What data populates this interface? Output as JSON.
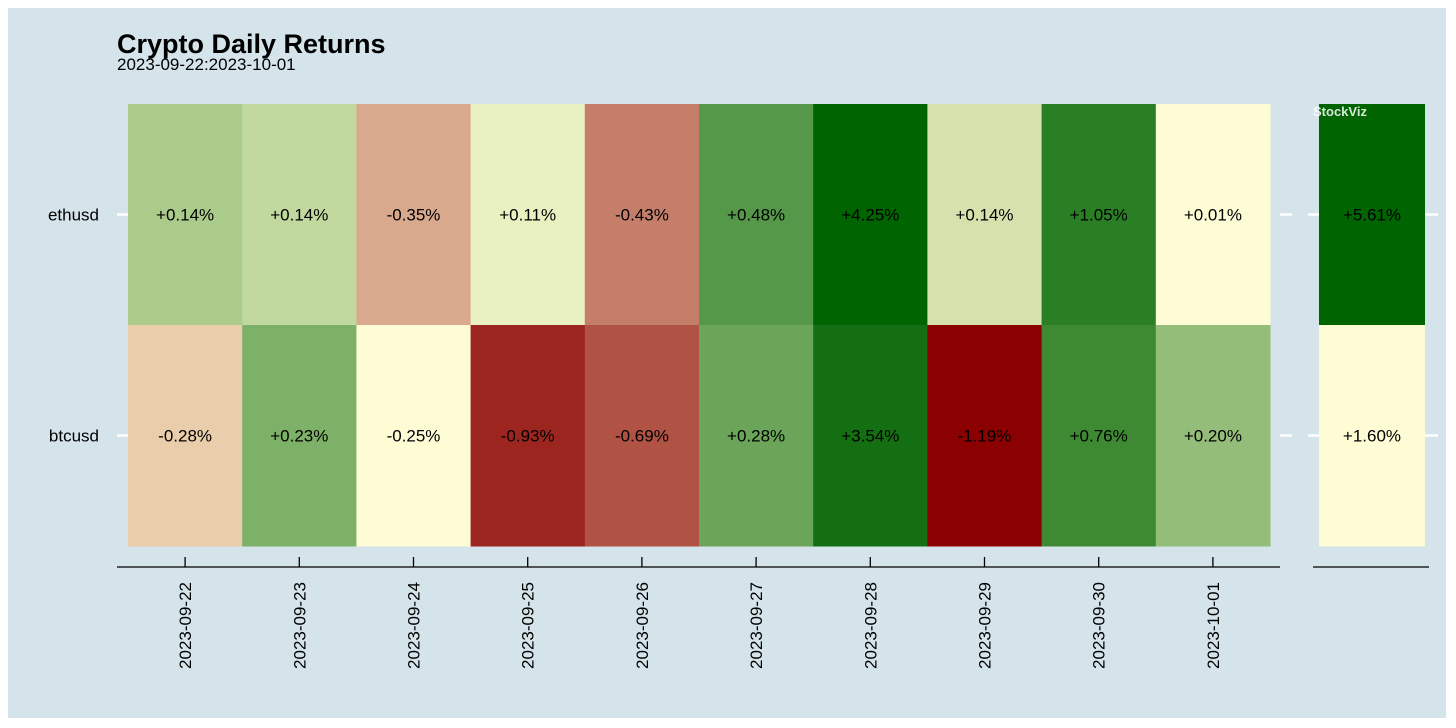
{
  "chart_data": {
    "type": "heatmap",
    "title": "Crypto Daily Returns",
    "subtitle": "2023-09-22:2023-10-01",
    "watermark": "StockViz",
    "rows": [
      "ethusd",
      "btcusd"
    ],
    "columns": [
      "2023-09-22",
      "2023-09-23",
      "2023-09-24",
      "2023-09-25",
      "2023-09-26",
      "2023-09-27",
      "2023-09-28",
      "2023-09-29",
      "2023-09-30",
      "2023-10-01"
    ],
    "values": [
      [
        0.14,
        0.14,
        -0.35,
        0.11,
        -0.43,
        0.48,
        4.25,
        0.14,
        1.05,
        0.01
      ],
      [
        -0.28,
        0.23,
        -0.25,
        -0.93,
        -0.69,
        0.28,
        3.54,
        -1.19,
        0.76,
        0.2
      ]
    ],
    "labels": [
      [
        "+0.14%",
        "+0.14%",
        "-0.35%",
        "+0.11%",
        "-0.43%",
        "+0.48%",
        "+4.25%",
        "+0.14%",
        "+1.05%",
        "+0.01%"
      ],
      [
        "-0.28%",
        "+0.23%",
        "-0.25%",
        "-0.93%",
        "-0.69%",
        "+0.28%",
        "+3.54%",
        "-1.19%",
        "+0.76%",
        "+0.20%"
      ]
    ],
    "colors": [
      [
        "#abcb8b",
        "#c1d99f",
        "#d8a98c",
        "#e9f0c1",
        "#c57e6a",
        "#55984a",
        "#006400",
        "#d5e2ae",
        "#2a7e23",
        "#fefcd5"
      ],
      [
        "#eaceab",
        "#7db168",
        "#fefcd5",
        "#9c261f",
        "#b05244",
        "#6aa559",
        "#136f12",
        "#8b0000",
        "#3e8a33",
        "#94bd79"
      ]
    ],
    "total_panel": {
      "values": [
        5.61,
        1.6
      ],
      "labels": [
        "+5.61%",
        "+1.60%"
      ],
      "colors": [
        "#006400",
        "#fefcd5"
      ]
    },
    "color_scale": {
      "negative": "#8b0000",
      "neutral": "#fefcd5",
      "positive": "#006400"
    },
    "grid": false,
    "legend": "none"
  }
}
